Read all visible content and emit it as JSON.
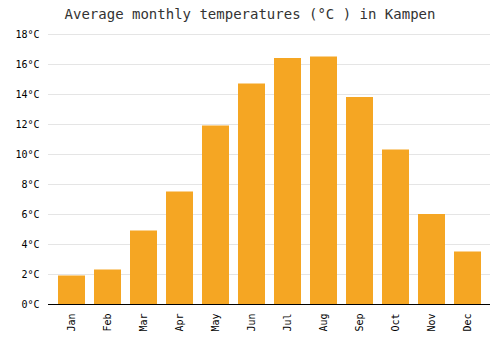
{
  "chart_data": {
    "type": "bar",
    "title": "Average monthly temperatures (°C ) in Kampen",
    "categories": [
      "Jan",
      "Feb",
      "Mar",
      "Apr",
      "May",
      "Jun",
      "Jul",
      "Aug",
      "Sep",
      "Oct",
      "Nov",
      "Dec"
    ],
    "values": [
      1.9,
      2.3,
      4.9,
      7.5,
      11.9,
      14.7,
      16.4,
      16.5,
      13.8,
      10.3,
      6.0,
      3.5
    ],
    "color": "#F5A623",
    "ylim": [
      0,
      18
    ],
    "yticks": [
      {
        "value": 0,
        "label": "0°C"
      },
      {
        "value": 2,
        "label": "2°C"
      },
      {
        "value": 4,
        "label": "4°C"
      },
      {
        "value": 6,
        "label": "6°C"
      },
      {
        "value": 8,
        "label": "8°C"
      },
      {
        "value": 10,
        "label": "10°C"
      },
      {
        "value": 12,
        "label": "12°C"
      },
      {
        "value": 14,
        "label": "14°C"
      },
      {
        "value": 16,
        "label": "16°C"
      },
      {
        "value": 18,
        "label": "18°C"
      }
    ],
    "grid": true
  }
}
